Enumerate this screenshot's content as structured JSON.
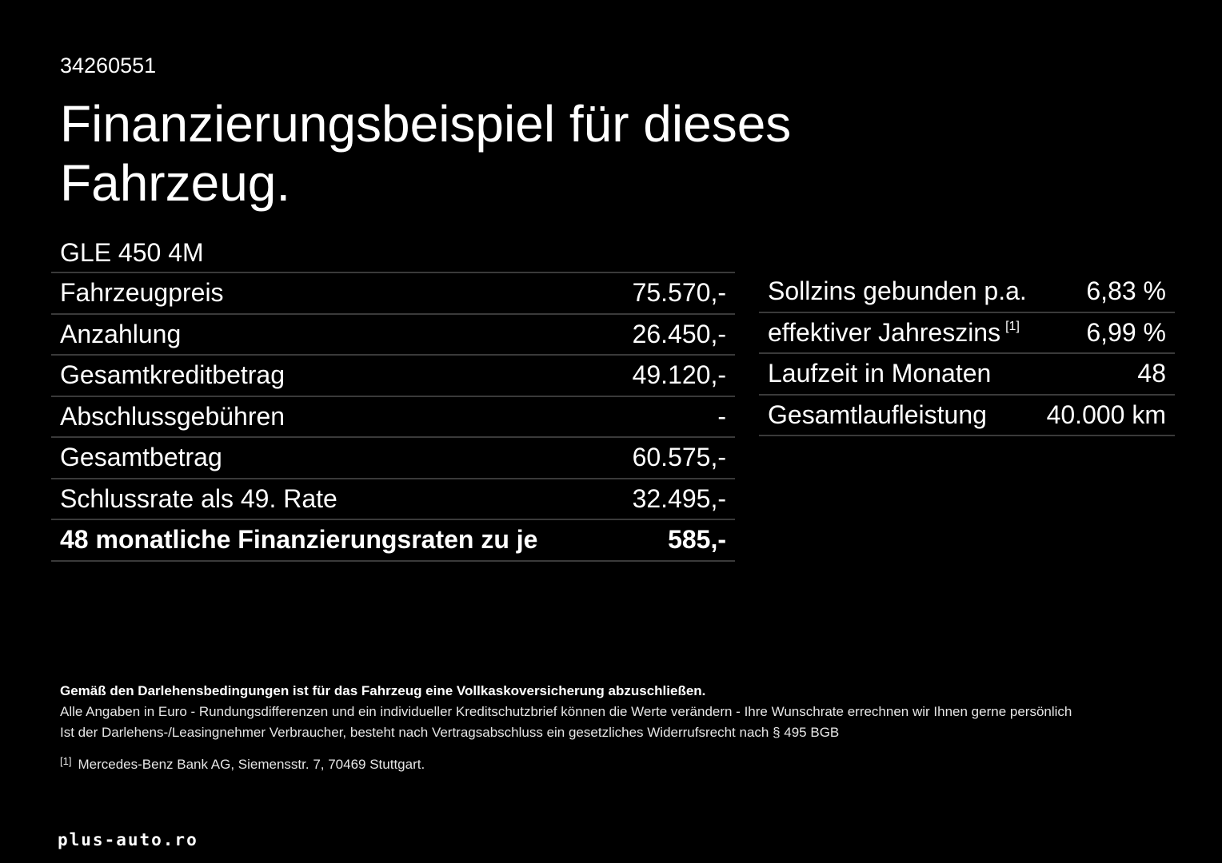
{
  "offer_id": "34260551",
  "title": "Finanzierungsbeispiel für dieses Fahrzeug.",
  "model": "GLE 450 4M",
  "left_table": [
    {
      "label": "Fahrzeugpreis",
      "value": "75.570,-"
    },
    {
      "label": "Anzahlung",
      "value": "26.450,-"
    },
    {
      "label": "Gesamtkreditbetrag",
      "value": "49.120,-"
    },
    {
      "label": "Abschlussgebühren",
      "value": "-"
    },
    {
      "label": "Gesamtbetrag",
      "value": "60.575,-"
    },
    {
      "label": "Schlussrate als 49. Rate",
      "value": "32.495,-"
    },
    {
      "label": "48 monatliche Finanzierungsraten zu je",
      "value": "585,-"
    }
  ],
  "right_table": [
    {
      "label": "Sollzins gebunden p.a.",
      "value": "6,83 %"
    },
    {
      "label": "effektiver Jahreszins",
      "sup": "[1]",
      "value": "6,99 %"
    },
    {
      "label": "Laufzeit in Monaten",
      "value": "48"
    },
    {
      "label": "Gesamtlaufleistung",
      "value": "40.000 km"
    }
  ],
  "notes": {
    "insurance": "Gemäß den Darlehensbedingungen ist für das Fahrzeug eine Vollkaskoversicherung abzuschließen.",
    "disclaimer1": "Alle Angaben in Euro - Rundungsdifferenzen und ein individueller Kreditschutzbrief können die Werte verändern - Ihre Wunschrate errechnen wir Ihnen gerne persönlich",
    "disclaimer2": "Ist der Darlehens-/Leasingnehmer Verbraucher, besteht nach Vertragsabschluss ein gesetzliches Widerrufsrecht nach § 495 BGB",
    "footnote_mark": "[1]",
    "footnote_text": "Mercedes-Benz Bank AG, Siemensstr. 7, 70469 Stuttgart."
  },
  "brand": "plus-auto.ro"
}
